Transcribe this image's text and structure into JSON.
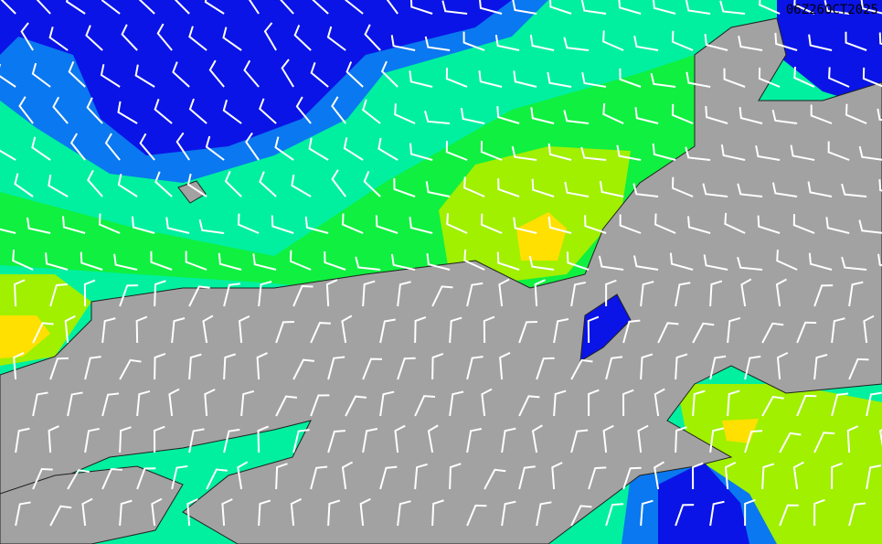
{
  "map": {
    "timestamp": "06Z26OCT2025",
    "colors": {
      "dark_blue": "#0a14e6",
      "blue": "#0a78f0",
      "aqua": "#00f0a0",
      "green": "#10f040",
      "yellow_green": "#a0f000",
      "yellow": "#ffe000",
      "land": "#a2a2a2",
      "barb": "#ffffff",
      "border": "#202020"
    },
    "layers": [
      "wind-speed-shading",
      "terrain-relief",
      "prefecture-borders",
      "wind-barbs"
    ]
  }
}
